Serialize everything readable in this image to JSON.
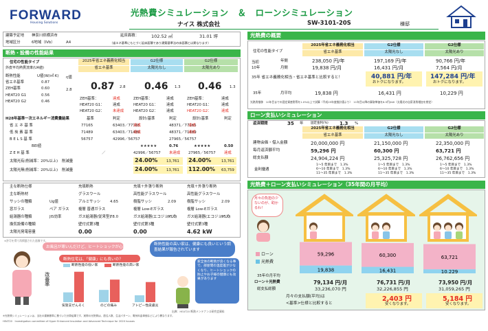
{
  "header": {
    "logo": "FORWARD",
    "logo_sub": "Housing Solutions",
    "title": "光熱費シミュレーション　＆　ローンシミュレーション",
    "company": "ナイス 株式会社",
    "model": "SW-3101-20S",
    "model_name": "様邸"
  },
  "info": {
    "site_label": "建築予定地",
    "site": "神奈川県横浜市",
    "area_label": "延床面積：",
    "area": "102.52 ㎡",
    "tsubo": "31.01 坪",
    "region_label": "地域区分",
    "region": "6地域（IVb）",
    "region_code": "A4",
    "note": "（省エネ基準にもとづく延床面積であり建築基準法の床面積とは異なります）"
  },
  "perf": {
    "section": "断熱・設備の性能結果",
    "col_label": "住宅の性能タイプ",
    "sub_label": "外皮平均熱貫流率(UA値)",
    "cols": [
      "2025年省エネ義務化相当",
      "G2仕様",
      "G2仕様"
    ],
    "subcols": [
      "省エネ基準",
      "太陽光なし",
      "太陽光あり"
    ],
    "rows": [
      [
        "断熱性能",
        "U値(W/㎡·K)",
        "0.87",
        "0.46",
        "0.46"
      ],
      [
        "省エネ基準",
        "0.87"
      ],
      [
        "ZEH基準",
        "0.60"
      ],
      [
        "HEAT20 G1",
        "0.56"
      ],
      [
        "HEAT20 G2",
        "0.46"
      ]
    ],
    "ua_values": [
      "0.87",
      "0.46",
      "0.46"
    ],
    "ua_grade": [
      "2.8",
      "1.3",
      "1.3"
    ],
    "kei": "η値",
    "eta": "2.8",
    "std_rows": [
      [
        "ZEH基準：",
        "達成",
        "ZEH基準：",
        "達成",
        "ZEH基準：",
        "達成"
      ],
      [
        "HEAT20 G1：",
        "達成",
        "HEAT20 G1：",
        "達成",
        "HEAT20 G1：",
        "達成"
      ],
      [
        "HEAT20 G2：",
        "未達成",
        "HEAT20 G2：",
        "達成",
        "HEAT20 G2：",
        "達成"
      ]
    ],
    "energy_label": "H28年基準一次エネルギー消費量結果",
    "energy_cols": [
      "基準",
      "判定",
      "設計/基準",
      "判定",
      "設計/基準",
      "判定"
    ],
    "energy_rows": [
      [
        "省 エ ネ 基 準",
        "77165",
        "63403／77165",
        "達成",
        "48371／77165",
        "達成"
      ],
      [
        "低 炭 素 基 準",
        "71489",
        "63403／71489",
        "達成",
        "48371／71489",
        "達成"
      ],
      [
        "B E L S 基 準",
        "56757",
        "42996／56757",
        "",
        "27965／56757",
        ""
      ]
    ],
    "bels_label": "BEI値",
    "bels": [
      "",
      "★★★★★",
      "0.76",
      "★★★★★",
      "0.50"
    ],
    "zeh_row": [
      "Z E H 基 準",
      "／",
      "42996／56757",
      "未達成",
      "27965／56757",
      "達成"
    ],
    "solar_label1": "太陽光有(削減率：20%以上)",
    "solar_label2": "太陽光無(削減率：20%以上)",
    "solar_side": "削減量",
    "solar1": [
      "24.00%",
      "13,761",
      "24.00%",
      "13,761"
    ],
    "solar2": [
      "24.00%",
      "13,761",
      "112.00%",
      "63,759"
    ]
  },
  "equip": {
    "rows": [
      [
        "主な断熱仕様",
        "充填断熱",
        "充填＋外張り断熱",
        "充填＋外張り断熱"
      ],
      [
        "主な断熱材",
        "グラスウール",
        "高性能グラスウール",
        "高性能グラスウール"
      ],
      [
        "サッシの種類",
        "Ug値",
        "アルミサッシ",
        "4.65",
        "樹脂サッシ",
        "2.09",
        "樹脂サッシ",
        "2.09"
      ],
      [
        "窓ガラス",
        "ペア ガラス",
        "複層 普通ガラス",
        "複層 Low-Eガラス",
        "複層 Low-Eガラス"
      ],
      [
        "給湯器の種類",
        "JIS効率",
        "ガス給湯器(従来型)",
        "78.0",
        "ガス給湯器(エコジョーズ)",
        "95.0",
        "ガス給湯器(エコジョーズ)",
        "95.0"
      ],
      [
        "換気設備の種類",
        "",
        "壁付式第3種",
        "壁付式第3種",
        "壁付式第3種"
      ],
      [
        "太陽光発電容量",
        "",
        "0.00",
        "0.00",
        "4.62 kW"
      ]
    ],
    "footnote": "※許可を得て再掲載された画像です。"
  },
  "talk": {
    "bubble1": "お風呂が寒いんだけど、ヒートショックが心配！",
    "bubble2": "断熱性能の高い家は、健康にも良いという調査結果が報告されています",
    "q": "断熱住宅は、「健康」にも良いの？",
    "side": "家全体の断熱が良くなる事で、部屋間の温度差が少なくなり、ヒートショックの防止やお子様の健康にも効果があります",
    "legend1": "断熱性能の低い家",
    "legend2": "断熱性能の高い家",
    "chart_ylabel": "改善率",
    "xlabels": [
      "気管支ぜんそく",
      "のどの痛み",
      "アトピー性皮膚炎"
    ],
    "source": "出典：HEAT20 断熱メンテナンス研究会資料"
  },
  "chart_data": [
    {
      "type": "bar",
      "categories": [
        "気管支ぜんそく",
        "のどの痛み",
        "アトピー性皮膚炎"
      ],
      "series": [
        {
          "name": "断熱性能の低い家",
          "values": [
            20,
            25,
            14
          ]
        },
        {
          "name": "断熱性能の高い家",
          "values": [
            62,
            46,
            41
          ]
        }
      ],
      "ylabel": "改善率"
    },
    {
      "type": "bar",
      "categories": [
        "2025年省エネ義務化相当",
        "G2仕様 太陽光なし",
        "G2仕様 太陽光あり"
      ],
      "series": [
        {
          "name": "光熱費",
          "values": [
            19838,
            16431,
            10229
          ]
        },
        {
          "name": "ローン",
          "values": [
            59296,
            60300,
            63721
          ]
        }
      ]
    }
  ],
  "bottom_notes": [
    "※光熱費シミュレーションは、当社の建築基準に基づいた計算結果です。実際の光熱費は、居住人数、生活パターン、電気料金単価などにより異なります。",
    "HEAT20　Investigation committee of Hyper Enhanced Insulation and Advanced Technique for 2020 houses"
  ],
  "right": {
    "sect1": "光熱費の概要",
    "col_label": "住宅の性能タイプ",
    "cols": [
      "2025年省エネ義務化相当",
      "G2仕様",
      "G2仕様"
    ],
    "subcols": [
      "省エネ基準",
      "太陽光なし",
      "太陽光あり"
    ],
    "annual_label1": "当初",
    "annual_label2": "10年",
    "y1_label": "年間",
    "m_label": "月間",
    "annual": [
      "238,050 円/年",
      "197,169 円/年",
      "90,766 円/年"
    ],
    "monthly": [
      "19,838 円/月",
      "16,431 円/月",
      "7,564 円/月"
    ],
    "compare_label": "35年 省エネ義務化相当・省エネ基準と比較すると！",
    "compare": [
      "40,881 円/年",
      "147,284 円/年"
    ],
    "compare_sub": [
      "おトクになります。",
      "おトクになります。"
    ],
    "y35_label": "35年",
    "m35_label": "月平均",
    "y35": [
      "19,838 円",
      "16,431 円",
      "10,229 円"
    ],
    "note": "光熱費推移　10年目までの固定資産税等を1.0%以上で試算（平成25年度推計値より）　11年目以降の買取単価を8.5円/kW（太陽光の自家消費増加を想定）",
    "sect2": "ローン支払いシミュレーション",
    "years_label": "返済期間",
    "years": "35",
    "years_unit": "年",
    "rate_label": "固定金利(%)",
    "rate": "1.3",
    "rate_unit": "%",
    "loan_rows": [
      [
        "建物会価・借入金額",
        "20,000,000 円",
        "21,150,000 円",
        "22,350,000 円"
      ],
      [
        "毎月返済額平均",
        "59,296 円",
        "60,300 円",
        "63,721 円"
      ],
      [
        "総支払額",
        "24,904,224 円",
        "25,325,728 円",
        "26,762,656 円"
      ]
    ],
    "detail_label": "金利優遇",
    "detail": [
      "1〜5 年目まで　1.3%",
      "6〜10 年目まで　1.3%",
      "11〜35 年目まで　1.3%"
    ],
    "sect3": "光熱費＋ローン支払いシミュレーション（35年間の月平均）",
    "bubble": "月々の負担の少ないのが、助かるわ！",
    "legend_loan": "ローン",
    "legend_energy": "光熱費",
    "bar_loan": [
      "59,296",
      "60,300",
      "63,721"
    ],
    "bar_energy": [
      "19,838",
      "16,431",
      "10,229"
    ],
    "bar_loan_v": [
      59296,
      60300,
      63721
    ],
    "bar_energy_v": [
      19838,
      16431,
      10229
    ],
    "row35": "35年の月平均",
    "sum_label": "ローン＋光熱費",
    "sum": [
      "79,134 円/月",
      "76,731 円/月",
      "73,950 円/月"
    ],
    "total_label": "総支払総額",
    "total": [
      "33,236,070 円",
      "32,226,855 円",
      "31,059,265 円"
    ],
    "save_label1": "月々の支払額(平均)は",
    "save_label2": "<基準>仕様と比較すると",
    "save": [
      "2,403 円",
      "5,184 円"
    ],
    "save_sub": [
      "安くなります。",
      "安くなります。"
    ]
  }
}
